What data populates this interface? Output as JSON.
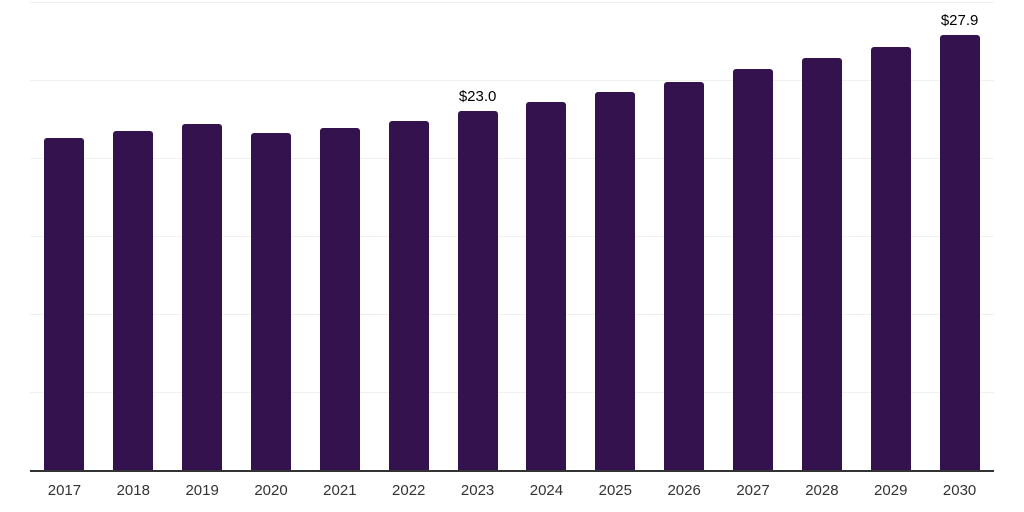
{
  "chart_data": {
    "type": "bar",
    "categories": [
      "2017",
      "2018",
      "2019",
      "2020",
      "2021",
      "2022",
      "2023",
      "2024",
      "2025",
      "2026",
      "2027",
      "2028",
      "2029",
      "2030"
    ],
    "values": [
      21.3,
      21.7,
      22.2,
      21.6,
      21.9,
      22.4,
      23.0,
      23.6,
      24.2,
      24.9,
      25.7,
      26.4,
      27.1,
      27.9
    ],
    "point_labels": [
      "",
      "",
      "",
      "",
      "",
      "",
      "$23.0",
      "",
      "",
      "",
      "",
      "",
      "",
      "$27.9"
    ],
    "title": "",
    "xlabel": "",
    "ylabel": "",
    "ylim": [
      0,
      30
    ],
    "grid_step": 5,
    "grid_on": true,
    "y_tick_labels_visible": false,
    "legend_position": "none",
    "bar_color": "#33124d",
    "grid_color": "#f0f0f0",
    "axis_line_color": "#333333",
    "tick_label_color": "#333333",
    "data_label_color": "#000000"
  }
}
